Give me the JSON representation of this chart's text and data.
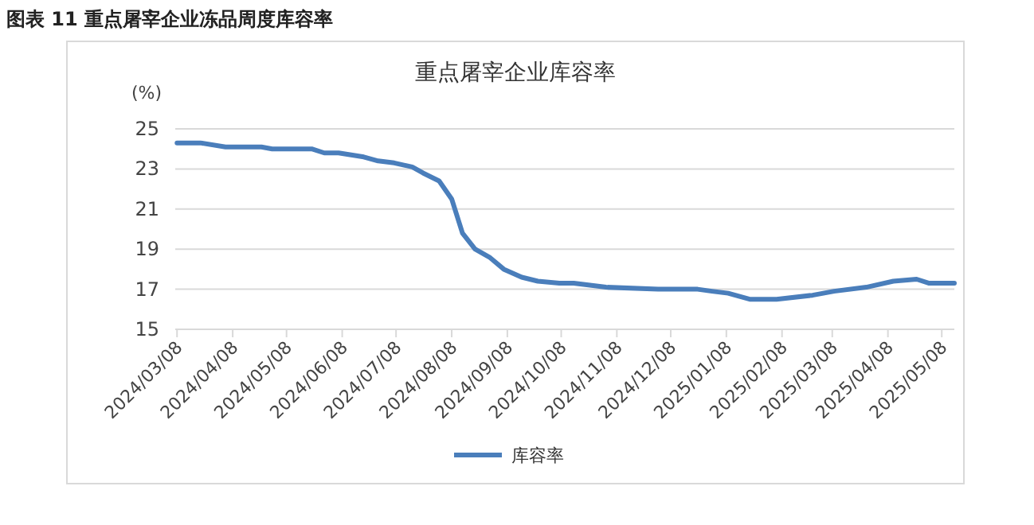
{
  "chart_data": {
    "type": "line",
    "title": "重点屠宰企业库容率",
    "ylabel": "(%)",
    "annotations": [
      "图表 11  重点屠宰企业冻品周度库容率"
    ],
    "x": [
      "2024-03-08",
      "2024-03-21",
      "2024-04-04",
      "2024-04-24",
      "2024-04-30",
      "2024-05-22",
      "2024-05-29",
      "2024-06-06",
      "2024-06-13",
      "2024-06-20",
      "2024-06-28",
      "2024-07-07",
      "2024-07-17",
      "2024-07-23",
      "2024-08-01",
      "2024-08-08",
      "2024-08-14",
      "2024-08-21",
      "2024-08-29",
      "2024-09-06",
      "2024-09-16",
      "2024-09-25",
      "2024-10-07",
      "2024-10-15",
      "2024-11-02",
      "2024-12-01",
      "2024-12-23",
      "2024-12-31",
      "2025-01-09",
      "2025-01-21",
      "2025-02-05",
      "2025-02-25",
      "2025-03-09",
      "2025-03-27",
      "2025-04-11",
      "2025-04-24",
      "2025-05-01",
      "2025-05-15"
    ],
    "series": [
      {
        "name": "库容率",
        "color": "#4a7ebb",
        "values": [
          24.3,
          24.3,
          24.1,
          24.1,
          24.0,
          24.0,
          23.8,
          23.8,
          23.7,
          23.6,
          23.4,
          23.3,
          23.1,
          22.8,
          22.4,
          21.5,
          19.8,
          19.0,
          18.6,
          18.0,
          17.6,
          17.4,
          17.3,
          17.3,
          17.1,
          17.0,
          17.0,
          16.9,
          16.8,
          16.5,
          16.5,
          16.7,
          16.9,
          17.1,
          17.4,
          17.5,
          17.3,
          17.3
        ]
      }
    ],
    "xlim": [
      "2024-03-07",
      "2025-05-15"
    ],
    "xticks": [
      {
        "value": "2024-03-08",
        "label": "2024/03/08"
      },
      {
        "value": "2024-04-08",
        "label": "2024/04/08"
      },
      {
        "value": "2024-05-08",
        "label": "2024/05/08"
      },
      {
        "value": "2024-06-08",
        "label": "2024/06/08"
      },
      {
        "value": "2024-07-08",
        "label": "2024/07/08"
      },
      {
        "value": "2024-08-08",
        "label": "2024/08/08"
      },
      {
        "value": "2024-09-08",
        "label": "2024/09/08"
      },
      {
        "value": "2024-10-08",
        "label": "2024/10/08"
      },
      {
        "value": "2024-11-08",
        "label": "2024/11/08"
      },
      {
        "value": "2024-12-08",
        "label": "2024/12/08"
      },
      {
        "value": "2025-01-08",
        "label": "2025/01/08"
      },
      {
        "value": "2025-02-08",
        "label": "2025/02/08"
      },
      {
        "value": "2025-03-08",
        "label": "2025/03/08"
      },
      {
        "value": "2025-04-08",
        "label": "2025/04/08"
      },
      {
        "value": "2025-05-08",
        "label": "2025/05/08"
      }
    ],
    "ylim": [
      15,
      25
    ],
    "yticks": [
      15,
      17,
      19,
      21,
      23,
      25
    ],
    "grid": "y",
    "legend": "bottom",
    "marker": "none",
    "line_style": "solid"
  }
}
